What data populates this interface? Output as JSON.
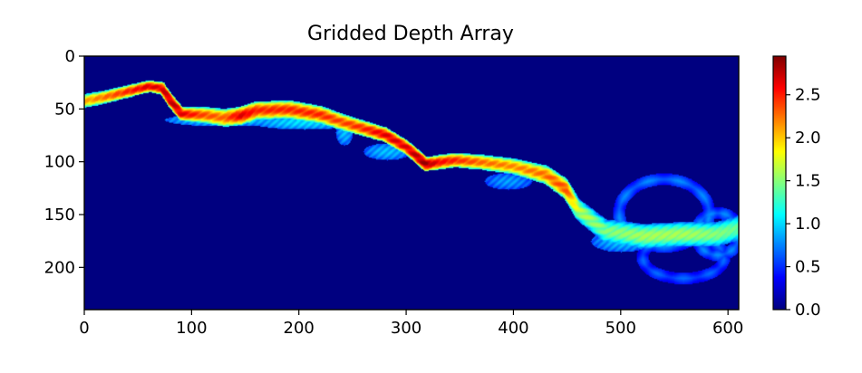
{
  "chart_data": {
    "type": "heatmap",
    "title": "Gridded Depth Array",
    "colormap": "jet",
    "xlim": [
      0,
      610
    ],
    "ylim": [
      240,
      0
    ],
    "xticks": [
      0,
      100,
      200,
      300,
      400,
      500,
      600
    ],
    "yticks": [
      0,
      50,
      100,
      150,
      200
    ],
    "colorbar": {
      "range": [
        0.0,
        2.95
      ],
      "ticks": [
        "0.0",
        "0.5",
        "1.0",
        "1.5",
        "2.0",
        "2.5"
      ],
      "ticks_values": [
        0.0,
        0.5,
        1.0,
        1.5,
        2.0,
        2.5
      ]
    },
    "background_value": 0.0,
    "river_centerline": [
      [
        0,
        42,
        2.0
      ],
      [
        20,
        38,
        2.2
      ],
      [
        40,
        33,
        2.4
      ],
      [
        60,
        28,
        2.6
      ],
      [
        72,
        30,
        2.6
      ],
      [
        80,
        42,
        2.7
      ],
      [
        90,
        54,
        2.6
      ],
      [
        110,
        55,
        2.3
      ],
      [
        130,
        58,
        2.2
      ],
      [
        145,
        56,
        2.6
      ],
      [
        160,
        51,
        2.4
      ],
      [
        190,
        50,
        2.4
      ],
      [
        220,
        55,
        2.4
      ],
      [
        240,
        62,
        2.3
      ],
      [
        260,
        68,
        2.4
      ],
      [
        280,
        74,
        2.6
      ],
      [
        300,
        86,
        2.6
      ],
      [
        318,
        102,
        2.8
      ],
      [
        330,
        100,
        2.5
      ],
      [
        345,
        98,
        2.4
      ],
      [
        370,
        100,
        2.2
      ],
      [
        400,
        104,
        2.1
      ],
      [
        430,
        112,
        2.2
      ],
      [
        448,
        125,
        2.3
      ],
      [
        460,
        145,
        1.6
      ],
      [
        485,
        165,
        1.4
      ],
      [
        520,
        170,
        1.5
      ],
      [
        560,
        168,
        1.5
      ],
      [
        590,
        168,
        1.4
      ],
      [
        610,
        162,
        1.3
      ]
    ],
    "river_halfwidth": [
      [
        0,
        6
      ],
      [
        60,
        5
      ],
      [
        90,
        6
      ],
      [
        130,
        8
      ],
      [
        200,
        8
      ],
      [
        300,
        6
      ],
      [
        400,
        7
      ],
      [
        450,
        9
      ],
      [
        500,
        11
      ],
      [
        610,
        11
      ]
    ],
    "floodplain_patches": [
      [
        130,
        60,
        55,
        6,
        1.0
      ],
      [
        205,
        62,
        50,
        7,
        1.0
      ],
      [
        242,
        72,
        8,
        12,
        0.9
      ],
      [
        282,
        90,
        22,
        8,
        0.9
      ],
      [
        395,
        118,
        22,
        8,
        0.8
      ],
      [
        500,
        175,
        28,
        10,
        0.9
      ]
    ],
    "loops": [
      {
        "cx": 540,
        "cy": 148,
        "rx": 42,
        "ry": 32,
        "width": 5,
        "value": 0.7
      },
      {
        "cx": 558,
        "cy": 190,
        "rx": 38,
        "ry": 20,
        "width": 5,
        "value": 0.6
      },
      {
        "cx": 590,
        "cy": 168,
        "rx": 20,
        "ry": 20,
        "width": 5,
        "value": 0.7
      }
    ]
  }
}
